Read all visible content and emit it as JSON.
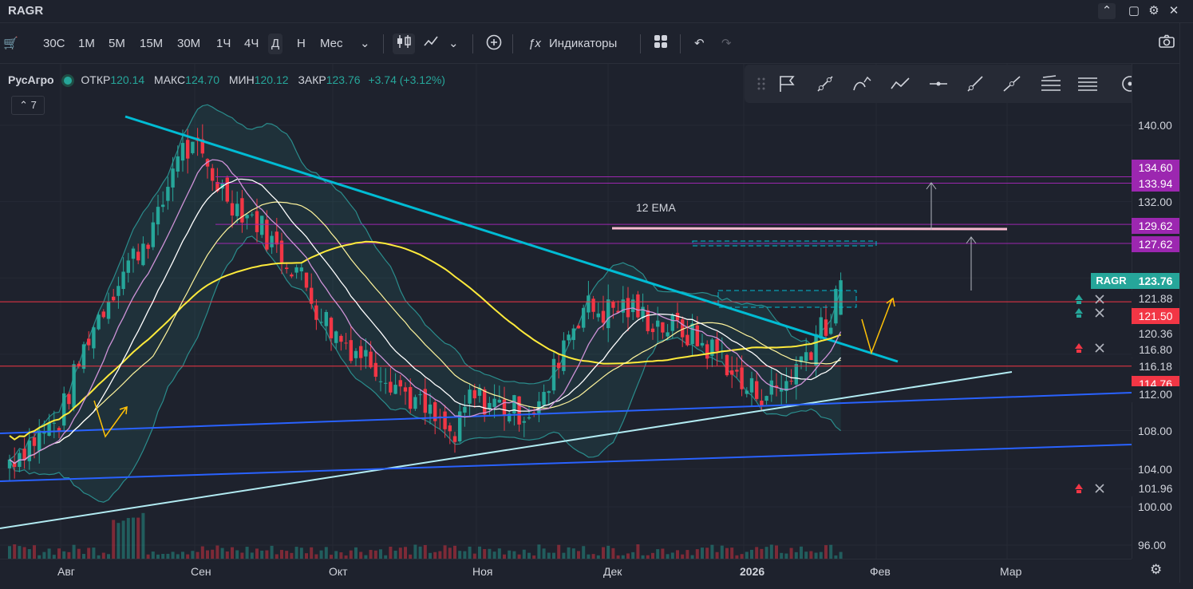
{
  "window": {
    "title": "RAGR"
  },
  "toolbar": {
    "intervals": [
      "30С",
      "1М",
      "5М",
      "15М",
      "30М",
      "1Ч",
      "4Ч",
      "Д",
      "Н",
      "Мес"
    ],
    "active_interval": "Д",
    "indicators_label": "Индикаторы"
  },
  "legend": {
    "symbol": "РусАгро",
    "open_label": "ОТКР",
    "open": "120.14",
    "high_label": "МАКС",
    "high": "124.70",
    "low_label": "МИН",
    "low": "120.12",
    "close_label": "ЗАКР",
    "close": "123.76",
    "change": "+3.74 (+3.12%)",
    "indicator_count": "7"
  },
  "annotations": {
    "ema_label": "12 EMA",
    "ticker_tag": "RAGR"
  },
  "price_axis": {
    "ticks": [
      "140.00",
      "132.00",
      "108.00",
      "104.00",
      "100.00",
      "96.00"
    ],
    "tags": [
      {
        "value": "134.60",
        "color": "#9c27b0"
      },
      {
        "value": "133.94",
        "color": "#9c27b0"
      },
      {
        "value": "129.62",
        "color": "#9c27b0"
      },
      {
        "value": "127.62",
        "color": "#9c27b0"
      },
      {
        "value": "123.76",
        "color": "#26a69a"
      },
      {
        "value": "121.88",
        "color": "#1e222d"
      },
      {
        "value": "121.50",
        "color": "#f23645"
      },
      {
        "value": "120.36",
        "color": "#1e222d"
      },
      {
        "value": "116.80",
        "color": "#1e222d"
      },
      {
        "value": "116.18",
        "color": "#1e222d"
      },
      {
        "value": "114.76",
        "color": "#f23645"
      },
      {
        "value": "112.00",
        "color": "#1e222d"
      },
      {
        "value": "101.96",
        "color": "#1e222d"
      }
    ]
  },
  "time_axis": {
    "labels": [
      "Авг",
      "Сен",
      "Окт",
      "Ноя",
      "Дек",
      "2026",
      "Фев",
      "Мар"
    ]
  },
  "chart_data": {
    "type": "candlestick",
    "symbol": "RAGR",
    "interval": "Д",
    "ylim": [
      94,
      143
    ],
    "horizontal_levels": [
      134.6,
      133.94,
      129.62,
      127.62,
      121.5,
      114.76
    ],
    "series": [
      {
        "name": "RAGR",
        "close_path": [
          [
            0,
            105
          ],
          [
            6,
            107.5
          ],
          [
            10,
            109
          ],
          [
            16,
            118
          ],
          [
            22,
            124
          ],
          [
            26,
            127
          ],
          [
            30,
            130
          ],
          [
            34,
            137.5
          ],
          [
            38,
            137
          ],
          [
            42,
            134
          ],
          [
            46,
            131.5
          ],
          [
            50,
            130
          ],
          [
            54,
            127
          ],
          [
            58,
            125
          ],
          [
            62,
            121
          ],
          [
            66,
            118
          ],
          [
            70,
            116.5
          ],
          [
            74,
            115
          ],
          [
            78,
            113
          ],
          [
            82,
            111
          ],
          [
            86,
            109
          ],
          [
            90,
            107
          ],
          [
            93,
            111.5
          ],
          [
            97,
            111
          ],
          [
            100,
            110.5
          ],
          [
            104,
            110
          ],
          [
            108,
            111
          ],
          [
            112,
            117.5
          ],
          [
            116,
            121
          ],
          [
            120,
            120.5
          ],
          [
            124,
            121
          ],
          [
            128,
            120
          ],
          [
            132,
            119
          ],
          [
            136,
            118.5
          ],
          [
            140,
            117
          ],
          [
            144,
            116
          ],
          [
            148,
            112.5
          ],
          [
            152,
            112
          ],
          [
            156,
            112.5
          ],
          [
            158,
            114
          ],
          [
            160,
            115.5
          ],
          [
            162,
            117
          ],
          [
            164,
            119.5
          ],
          [
            166,
            119
          ],
          [
            168,
            123.76
          ]
        ]
      }
    ]
  }
}
